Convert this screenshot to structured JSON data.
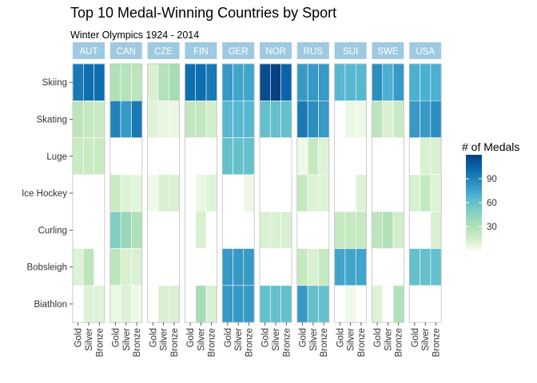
{
  "chart_data": {
    "type": "heatmap",
    "title": "Top 10 Medal-Winning Countries by Sport",
    "subtitle": "Winter Olympics 1924 - 2014",
    "facets": [
      "AUT",
      "CAN",
      "CZE",
      "FIN",
      "GER",
      "NOR",
      "RUS",
      "SUI",
      "SWE",
      "USA"
    ],
    "x_categories": [
      "Gold",
      "Silver",
      "Bronze"
    ],
    "y_categories": [
      "Skiing",
      "Skating",
      "Luge",
      "Ice Hockey",
      "Curling",
      "Bobsleigh",
      "Biathlon"
    ],
    "legend": {
      "title": "# of Medals",
      "ticks": [
        30,
        60,
        90
      ],
      "range": [
        0,
        120
      ],
      "placement": "right"
    },
    "colors": {
      "strip": "#9ecae1",
      "scale": [
        "#f7fcf0",
        "#ccebc5",
        "#a8ddb5",
        "#7bccc4",
        "#4eb3d3",
        "#2b8cbe",
        "#0868ac",
        "#084081"
      ],
      "panel_border": "#bfbfbf"
    },
    "values": {
      "AUT": {
        "Skiing": [
          95,
          100,
          100
        ],
        "Skating": [
          25,
          20,
          18
        ],
        "Luge": [
          18,
          18,
          18
        ],
        "Ice Hockey": [
          0,
          0,
          0
        ],
        "Curling": [
          0,
          0,
          0
        ],
        "Bobsleigh": [
          10,
          25,
          0
        ],
        "Biathlon": [
          0,
          10,
          10
        ]
      },
      "CAN": {
        "Skiing": [
          30,
          28,
          25
        ],
        "Skating": [
          90,
          80,
          95
        ],
        "Luge": [
          0,
          0,
          0
        ],
        "Ice Hockey": [
          18,
          10,
          8
        ],
        "Curling": [
          50,
          40,
          30
        ],
        "Bobsleigh": [
          25,
          12,
          12
        ],
        "Biathlon": [
          5,
          10,
          3
        ]
      },
      "CZE": {
        "Skiing": [
          12,
          28,
          35
        ],
        "Skating": [
          10,
          6,
          5
        ],
        "Luge": [
          0,
          0,
          0
        ],
        "Ice Hockey": [
          3,
          12,
          12
        ],
        "Curling": [
          0,
          0,
          0
        ],
        "Bobsleigh": [
          0,
          0,
          0
        ],
        "Biathlon": [
          0,
          12,
          12
        ]
      },
      "FIN": {
        "Skiing": [
          100,
          100,
          95
        ],
        "Skating": [
          22,
          22,
          15
        ],
        "Luge": [
          0,
          0,
          0
        ],
        "Ice Hockey": [
          0,
          5,
          10
        ],
        "Curling": [
          0,
          12,
          0
        ],
        "Bobsleigh": [
          0,
          0,
          0
        ],
        "Biathlon": [
          0,
          35,
          12
        ]
      },
      "GER": {
        "Skiing": [
          80,
          75,
          75
        ],
        "Skating": [
          65,
          65,
          65
        ],
        "Luge": [
          60,
          60,
          60
        ],
        "Ice Hockey": [
          0,
          0,
          5
        ],
        "Curling": [
          0,
          0,
          0
        ],
        "Bobsleigh": [
          80,
          80,
          80
        ],
        "Biathlon": [
          80,
          80,
          80
        ]
      },
      "NOR": {
        "Skiing": [
          115,
          120,
          105
        ],
        "Skating": [
          60,
          60,
          60
        ],
        "Luge": [
          0,
          0,
          0
        ],
        "Ice Hockey": [
          0,
          0,
          0
        ],
        "Curling": [
          12,
          12,
          12
        ],
        "Bobsleigh": [
          0,
          0,
          0
        ],
        "Biathlon": [
          60,
          60,
          60
        ]
      },
      "RUS": {
        "Skiing": [
          80,
          80,
          80
        ],
        "Skating": [
          95,
          85,
          80
        ],
        "Luge": [
          3,
          20,
          10
        ],
        "Ice Hockey": [
          20,
          10,
          10
        ],
        "Curling": [
          0,
          0,
          0
        ],
        "Bobsleigh": [
          20,
          12,
          20
        ],
        "Biathlon": [
          80,
          60,
          60
        ]
      },
      "SUI": {
        "Skiing": [
          65,
          65,
          65
        ],
        "Skating": [
          0,
          5,
          3
        ],
        "Luge": [
          0,
          0,
          0
        ],
        "Ice Hockey": [
          0,
          0,
          10
        ],
        "Curling": [
          20,
          20,
          20
        ],
        "Bobsleigh": [
          75,
          75,
          75
        ],
        "Biathlon": [
          0,
          3,
          0
        ]
      },
      "SWE": {
        "Skiing": [
          85,
          70,
          80
        ],
        "Skating": [
          25,
          12,
          18
        ],
        "Luge": [
          0,
          0,
          0
        ],
        "Ice Hockey": [
          0,
          0,
          0
        ],
        "Curling": [
          25,
          30,
          15
        ],
        "Bobsleigh": [
          0,
          0,
          0
        ],
        "Biathlon": [
          10,
          0,
          30
        ]
      },
      "USA": {
        "Skiing": [
          70,
          70,
          70
        ],
        "Skating": [
          80,
          80,
          85
        ],
        "Luge": [
          0,
          12,
          12
        ],
        "Ice Hockey": [
          12,
          20,
          10
        ],
        "Curling": [
          0,
          0,
          12
        ],
        "Bobsleigh": [
          60,
          60,
          60
        ],
        "Biathlon": [
          0,
          0,
          0
        ]
      }
    }
  }
}
